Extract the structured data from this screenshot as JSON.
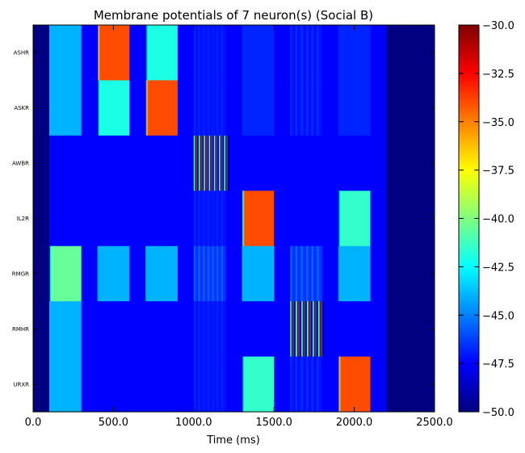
{
  "chart_data": {
    "type": "heatmap",
    "title": "Membrane potentials of 7 neuron(s) (Social B)",
    "xlabel": "Time (ms)",
    "ylabel": "",
    "xlim": [
      0,
      2500
    ],
    "x_ticks": [
      "0.0",
      "500.0",
      "1000.0",
      "1500.0",
      "2000.0",
      "2500.0"
    ],
    "x_tick_values": [
      0,
      500,
      1000,
      1500,
      2000,
      2500
    ],
    "neurons": [
      "ASHR",
      "ASKR",
      "AWBR",
      "IL2R",
      "RMGR",
      "RMHR",
      "URXR"
    ],
    "colorbar": {
      "range": [
        -50,
        -30
      ],
      "ticks": [
        "−30.0",
        "−32.5",
        "−35.0",
        "−37.5",
        "−40.0",
        "−42.5",
        "−45.0",
        "−47.5",
        "−50.0"
      ],
      "tick_values": [
        -30,
        -32.5,
        -35,
        -37.5,
        -40,
        -42.5,
        -45,
        -47.5,
        -50
      ],
      "colormap": "jet"
    },
    "baseline_mV": -50,
    "segments": [
      {
        "neuron": "ASHR",
        "start": 0,
        "end": 100,
        "mV": -50
      },
      {
        "neuron": "ASHR",
        "start": 100,
        "end": 300,
        "mV": -44
      },
      {
        "neuron": "ASHR",
        "start": 300,
        "end": 400,
        "mV": -47.5
      },
      {
        "neuron": "ASHR",
        "start": 400,
        "end": 600,
        "mV": -34,
        "rise": 0.06,
        "rise_to": -33.5
      },
      {
        "neuron": "ASHR",
        "start": 600,
        "end": 700,
        "mV": -47.5
      },
      {
        "neuron": "ASHR",
        "start": 700,
        "end": 900,
        "mV": -42,
        "rise": 0.05
      },
      {
        "neuron": "ASHR",
        "start": 900,
        "end": 1000,
        "mV": -47.5
      },
      {
        "neuron": "ASHR",
        "start": 1000,
        "end": 1200,
        "mV": -47.2,
        "stripes": 7,
        "stripe_mV": -46.8
      },
      {
        "neuron": "ASHR",
        "start": 1200,
        "end": 1300,
        "mV": -47.5
      },
      {
        "neuron": "ASHR",
        "start": 1300,
        "end": 1500,
        "mV": -46.8
      },
      {
        "neuron": "ASHR",
        "start": 1500,
        "end": 1600,
        "mV": -47.5
      },
      {
        "neuron": "ASHR",
        "start": 1600,
        "end": 1800,
        "mV": -47.2,
        "stripes": 6,
        "stripe_mV": -46.6
      },
      {
        "neuron": "ASHR",
        "start": 1800,
        "end": 1900,
        "mV": -47.5
      },
      {
        "neuron": "ASHR",
        "start": 1900,
        "end": 2100,
        "mV": -46.8
      },
      {
        "neuron": "ASHR",
        "start": 2100,
        "end": 2200,
        "mV": -47.5
      },
      {
        "neuron": "ASHR",
        "start": 2200,
        "end": 2500,
        "mV": -50
      },
      {
        "neuron": "ASKR",
        "start": 0,
        "end": 100,
        "mV": -50
      },
      {
        "neuron": "ASKR",
        "start": 100,
        "end": 300,
        "mV": -44
      },
      {
        "neuron": "ASKR",
        "start": 300,
        "end": 400,
        "mV": -47.5
      },
      {
        "neuron": "ASKR",
        "start": 400,
        "end": 600,
        "mV": -42,
        "rise": 0.05
      },
      {
        "neuron": "ASKR",
        "start": 600,
        "end": 700,
        "mV": -47.5
      },
      {
        "neuron": "ASKR",
        "start": 700,
        "end": 900,
        "mV": -34,
        "rise": 0.06,
        "rise_to": -33.5
      },
      {
        "neuron": "ASKR",
        "start": 900,
        "end": 1000,
        "mV": -47.5
      },
      {
        "neuron": "ASKR",
        "start": 1000,
        "end": 1200,
        "mV": -47.2,
        "stripes": 7,
        "stripe_mV": -46.8
      },
      {
        "neuron": "ASKR",
        "start": 1200,
        "end": 1300,
        "mV": -47.5
      },
      {
        "neuron": "ASKR",
        "start": 1300,
        "end": 1500,
        "mV": -46.8
      },
      {
        "neuron": "ASKR",
        "start": 1500,
        "end": 1600,
        "mV": -47.5
      },
      {
        "neuron": "ASKR",
        "start": 1600,
        "end": 1800,
        "mV": -47.2,
        "stripes": 6,
        "stripe_mV": -46.6
      },
      {
        "neuron": "ASKR",
        "start": 1800,
        "end": 1900,
        "mV": -47.5
      },
      {
        "neuron": "ASKR",
        "start": 1900,
        "end": 2100,
        "mV": -46.8
      },
      {
        "neuron": "ASKR",
        "start": 2100,
        "end": 2200,
        "mV": -47.5
      },
      {
        "neuron": "ASKR",
        "start": 2200,
        "end": 2500,
        "mV": -50
      },
      {
        "neuron": "AWBR",
        "start": 0,
        "end": 100,
        "mV": -50
      },
      {
        "neuron": "AWBR",
        "start": 100,
        "end": 300,
        "mV": -47.5
      },
      {
        "neuron": "AWBR",
        "start": 300,
        "end": 400,
        "mV": -47.5
      },
      {
        "neuron": "AWBR",
        "start": 400,
        "end": 600,
        "mV": -47.5
      },
      {
        "neuron": "AWBR",
        "start": 600,
        "end": 700,
        "mV": -47.5
      },
      {
        "neuron": "AWBR",
        "start": 700,
        "end": 900,
        "mV": -47.5
      },
      {
        "neuron": "AWBR",
        "start": 900,
        "end": 1000,
        "mV": -47.5
      },
      {
        "neuron": "AWBR",
        "start": 1000,
        "end": 1220,
        "mV": -30.5,
        "burst": 7
      },
      {
        "neuron": "AWBR",
        "start": 1220,
        "end": 1300,
        "mV": -47.5
      },
      {
        "neuron": "AWBR",
        "start": 1300,
        "end": 1500,
        "mV": -47.5
      },
      {
        "neuron": "AWBR",
        "start": 1500,
        "end": 1600,
        "mV": -47.5
      },
      {
        "neuron": "AWBR",
        "start": 1600,
        "end": 1800,
        "mV": -47.5
      },
      {
        "neuron": "AWBR",
        "start": 1800,
        "end": 1900,
        "mV": -47.5
      },
      {
        "neuron": "AWBR",
        "start": 1900,
        "end": 2100,
        "mV": -47.5
      },
      {
        "neuron": "AWBR",
        "start": 2100,
        "end": 2200,
        "mV": -47.5
      },
      {
        "neuron": "AWBR",
        "start": 2200,
        "end": 2500,
        "mV": -50
      },
      {
        "neuron": "IL2R",
        "start": 0,
        "end": 100,
        "mV": -50
      },
      {
        "neuron": "IL2R",
        "start": 100,
        "end": 300,
        "mV": -47.5
      },
      {
        "neuron": "IL2R",
        "start": 300,
        "end": 400,
        "mV": -47.5
      },
      {
        "neuron": "IL2R",
        "start": 400,
        "end": 600,
        "mV": -47.5
      },
      {
        "neuron": "IL2R",
        "start": 600,
        "end": 700,
        "mV": -47.5
      },
      {
        "neuron": "IL2R",
        "start": 700,
        "end": 900,
        "mV": -47.5
      },
      {
        "neuron": "IL2R",
        "start": 900,
        "end": 1000,
        "mV": -47.5
      },
      {
        "neuron": "IL2R",
        "start": 1000,
        "end": 1200,
        "mV": -47.2,
        "stripes": 7,
        "stripe_mV": -46.8
      },
      {
        "neuron": "IL2R",
        "start": 1200,
        "end": 1300,
        "mV": -47.5
      },
      {
        "neuron": "IL2R",
        "start": 1300,
        "end": 1500,
        "mV": -34,
        "rise": 0.06,
        "rise_to": -33.5
      },
      {
        "neuron": "IL2R",
        "start": 1500,
        "end": 1600,
        "mV": -47.5
      },
      {
        "neuron": "IL2R",
        "start": 1600,
        "end": 1800,
        "mV": -47.5
      },
      {
        "neuron": "IL2R",
        "start": 1800,
        "end": 1900,
        "mV": -47.5
      },
      {
        "neuron": "IL2R",
        "start": 1900,
        "end": 2100,
        "mV": -41.5,
        "rise": 0.05
      },
      {
        "neuron": "IL2R",
        "start": 2100,
        "end": 2200,
        "mV": -47.5
      },
      {
        "neuron": "IL2R",
        "start": 2200,
        "end": 2500,
        "mV": -50
      },
      {
        "neuron": "RMGR",
        "start": 0,
        "end": 100,
        "mV": -50
      },
      {
        "neuron": "RMGR",
        "start": 100,
        "end": 300,
        "mV": -40.5,
        "rise": 0.05
      },
      {
        "neuron": "RMGR",
        "start": 300,
        "end": 400,
        "mV": -47.5
      },
      {
        "neuron": "RMGR",
        "start": 400,
        "end": 600,
        "mV": -44
      },
      {
        "neuron": "RMGR",
        "start": 600,
        "end": 700,
        "mV": -47.5
      },
      {
        "neuron": "RMGR",
        "start": 700,
        "end": 900,
        "mV": -44
      },
      {
        "neuron": "RMGR",
        "start": 900,
        "end": 1000,
        "mV": -47.5
      },
      {
        "neuron": "RMGR",
        "start": 1000,
        "end": 1200,
        "mV": -46.5,
        "stripes": 7,
        "stripe_mV": -45.5
      },
      {
        "neuron": "RMGR",
        "start": 1200,
        "end": 1300,
        "mV": -47.5
      },
      {
        "neuron": "RMGR",
        "start": 1300,
        "end": 1500,
        "mV": -44
      },
      {
        "neuron": "RMGR",
        "start": 1500,
        "end": 1600,
        "mV": -47.5
      },
      {
        "neuron": "RMGR",
        "start": 1600,
        "end": 1800,
        "mV": -46.5,
        "stripes": 6,
        "stripe_mV": -45.5
      },
      {
        "neuron": "RMGR",
        "start": 1800,
        "end": 1900,
        "mV": -47.5
      },
      {
        "neuron": "RMGR",
        "start": 1900,
        "end": 2100,
        "mV": -44
      },
      {
        "neuron": "RMGR",
        "start": 2100,
        "end": 2200,
        "mV": -47.5
      },
      {
        "neuron": "RMGR",
        "start": 2200,
        "end": 2500,
        "mV": -50
      },
      {
        "neuron": "RMHR",
        "start": 0,
        "end": 100,
        "mV": -50
      },
      {
        "neuron": "RMHR",
        "start": 100,
        "end": 300,
        "mV": -44
      },
      {
        "neuron": "RMHR",
        "start": 300,
        "end": 400,
        "mV": -47.5
      },
      {
        "neuron": "RMHR",
        "start": 400,
        "end": 600,
        "mV": -47.5
      },
      {
        "neuron": "RMHR",
        "start": 600,
        "end": 700,
        "mV": -47.5
      },
      {
        "neuron": "RMHR",
        "start": 700,
        "end": 900,
        "mV": -47.5
      },
      {
        "neuron": "RMHR",
        "start": 900,
        "end": 1000,
        "mV": -47.5
      },
      {
        "neuron": "RMHR",
        "start": 1000,
        "end": 1200,
        "mV": -47.2,
        "stripes": 7,
        "stripe_mV": -46.8
      },
      {
        "neuron": "RMHR",
        "start": 1200,
        "end": 1300,
        "mV": -47.5
      },
      {
        "neuron": "RMHR",
        "start": 1300,
        "end": 1500,
        "mV": -47.5
      },
      {
        "neuron": "RMHR",
        "start": 1500,
        "end": 1600,
        "mV": -47.5
      },
      {
        "neuron": "RMHR",
        "start": 1600,
        "end": 1810,
        "mV": -30.5,
        "burst": 6
      },
      {
        "neuron": "RMHR",
        "start": 1810,
        "end": 1900,
        "mV": -47.5
      },
      {
        "neuron": "RMHR",
        "start": 1900,
        "end": 2100,
        "mV": -47.5
      },
      {
        "neuron": "RMHR",
        "start": 2100,
        "end": 2200,
        "mV": -47.5
      },
      {
        "neuron": "RMHR",
        "start": 2200,
        "end": 2500,
        "mV": -50
      },
      {
        "neuron": "URXR",
        "start": 0,
        "end": 100,
        "mV": -50
      },
      {
        "neuron": "URXR",
        "start": 100,
        "end": 300,
        "mV": -44
      },
      {
        "neuron": "URXR",
        "start": 300,
        "end": 400,
        "mV": -47.5
      },
      {
        "neuron": "URXR",
        "start": 400,
        "end": 600,
        "mV": -47.5
      },
      {
        "neuron": "URXR",
        "start": 600,
        "end": 700,
        "mV": -47.5
      },
      {
        "neuron": "URXR",
        "start": 700,
        "end": 900,
        "mV": -47.5
      },
      {
        "neuron": "URXR",
        "start": 900,
        "end": 1000,
        "mV": -47.5
      },
      {
        "neuron": "URXR",
        "start": 1000,
        "end": 1200,
        "mV": -47.2,
        "stripes": 7,
        "stripe_mV": -46.8
      },
      {
        "neuron": "URXR",
        "start": 1200,
        "end": 1300,
        "mV": -47.5
      },
      {
        "neuron": "URXR",
        "start": 1300,
        "end": 1500,
        "mV": -41.5,
        "rise": 0.05
      },
      {
        "neuron": "URXR",
        "start": 1500,
        "end": 1600,
        "mV": -47.5
      },
      {
        "neuron": "URXR",
        "start": 1600,
        "end": 1800,
        "mV": -47.2,
        "stripes": 6,
        "stripe_mV": -46.6
      },
      {
        "neuron": "URXR",
        "start": 1800,
        "end": 1900,
        "mV": -47.5
      },
      {
        "neuron": "URXR",
        "start": 1900,
        "end": 2100,
        "mV": -34,
        "rise": 0.06,
        "rise_to": -33.5
      },
      {
        "neuron": "URXR",
        "start": 2100,
        "end": 2200,
        "mV": -47.5
      },
      {
        "neuron": "URXR",
        "start": 2200,
        "end": 2500,
        "mV": -50
      }
    ]
  }
}
